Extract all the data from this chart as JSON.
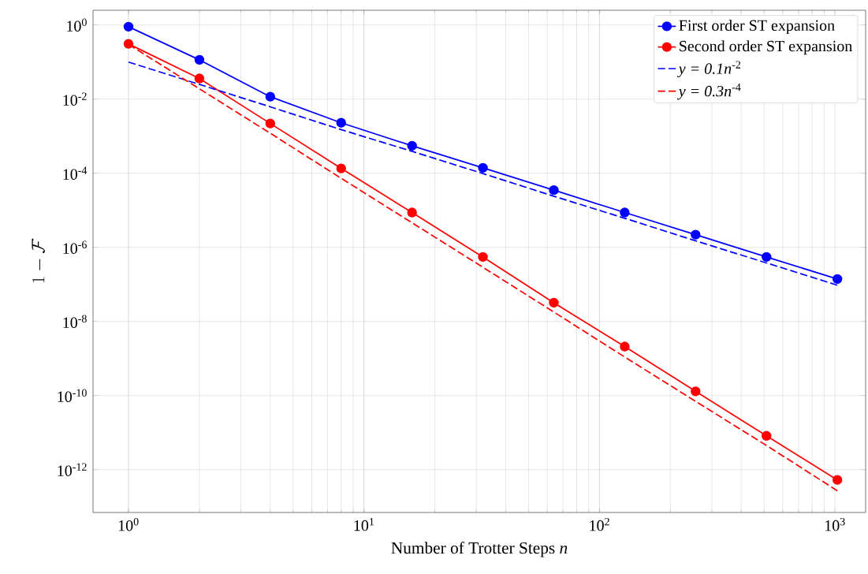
{
  "chart_data": {
    "type": "line",
    "xlabel": "Number of Trotter Steps *n*",
    "ylabel": "1 - \\mathcal{F}",
    "x": [
      1,
      2,
      4,
      8,
      16,
      32,
      64,
      128,
      256,
      512,
      1024
    ],
    "series": [
      {
        "name": "First order ST expansion",
        "color": "#0000ff",
        "marker": "circle",
        "line_style": "solid",
        "values": [
          0.9,
          0.115,
          0.0116,
          0.0023,
          0.00055,
          0.00014,
          3.5e-05,
          8.7e-06,
          2.2e-06,
          5.5e-07,
          1.4e-07
        ]
      },
      {
        "name": "Second order ST expansion",
        "color": "#ff0000",
        "marker": "circle",
        "line_style": "solid",
        "values": [
          0.31,
          0.036,
          0.0022,
          0.000135,
          8.7e-06,
          5.5e-07,
          3.2e-08,
          2.1e-09,
          1.3e-10,
          8.2e-12,
          5.3e-13
        ]
      },
      {
        "name": "*y = 0.1n*$^{-2}$",
        "color": "#0000ff",
        "marker": "none",
        "line_style": "dashed",
        "values": [
          0.1,
          0.025,
          0.0062,
          0.0015,
          0.00039,
          9.8e-05,
          2.4e-05,
          6.1e-06,
          1.5e-06,
          3.8e-07,
          9.5e-08
        ]
      },
      {
        "name": "*y = 0.3n*$^{-4}$",
        "color": "#ff0000",
        "marker": "none",
        "line_style": "dashed",
        "values": [
          0.3,
          0.019,
          0.0012,
          7.3e-05,
          4.6e-06,
          2.9e-07,
          1.8e-08,
          1.1e-09,
          7e-11,
          4.5e-12,
          2.7e-13
        ]
      }
    ],
    "log": "xy",
    "grid": true,
    "legend": "top right",
    "xlim": [
      0.707,
      1350
    ],
    "ylim": [
      7e-14,
      2.5
    ],
    "xticks": [
      {
        "value": 1,
        "label": "10$^{0}$"
      },
      {
        "value": 10,
        "label": "10$^{1}$"
      },
      {
        "value": 100,
        "label": "10$^{2}$"
      },
      {
        "value": 1000,
        "label": "10$^{3}$"
      }
    ],
    "yticks": [
      {
        "value": 1e-12,
        "label": "10$^{-12}$"
      },
      {
        "value": 1e-10,
        "label": "10$^{-10}$"
      },
      {
        "value": 1e-08,
        "label": "10$^{-8}$"
      },
      {
        "value": 1e-06,
        "label": "10$^{-6}$"
      },
      {
        "value": 0.0001,
        "label": "10$^{-4}$"
      },
      {
        "value": 0.01,
        "label": "10$^{-2}$"
      },
      {
        "value": 1,
        "label": "10$^{0}$"
      }
    ]
  }
}
